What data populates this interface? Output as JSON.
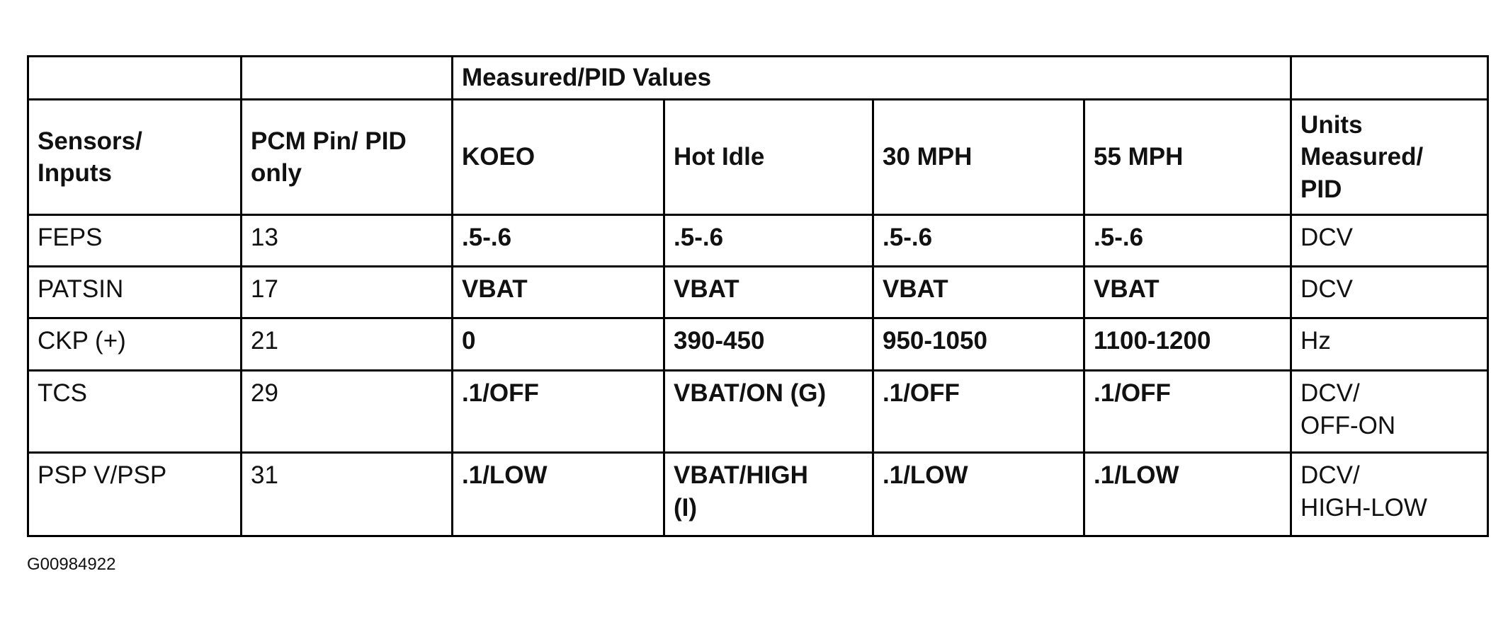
{
  "header": {
    "group_label": "Measured/PID Values",
    "columns": [
      "Sensors/\nInputs",
      "PCM Pin/ PID\nonly",
      "KOEO",
      "Hot Idle",
      "30 MPH",
      "55 MPH",
      "Units\nMeasured/\nPID"
    ]
  },
  "table": {
    "rows": [
      [
        "FEPS",
        "13",
        ".5-.6",
        ".5-.6",
        ".5-.6",
        ".5-.6",
        "DCV"
      ],
      [
        "PATSIN",
        "17",
        "VBAT",
        "VBAT",
        "VBAT",
        "VBAT",
        "DCV"
      ],
      [
        "CKP (+)",
        "21",
        "0",
        "390-450",
        "950-1050",
        "1100-1200",
        "Hz"
      ],
      [
        "TCS",
        "29",
        ".1/OFF",
        "VBAT/ON (G)",
        ".1/OFF",
        ".1/OFF",
        "DCV/\nOFF-ON"
      ],
      [
        "PSP V/PSP",
        "31",
        ".1/LOW",
        "VBAT/HIGH\n(I)",
        ".1/LOW",
        ".1/LOW",
        "DCV/\nHIGH-LOW"
      ]
    ]
  },
  "figure_id": "G00984922"
}
